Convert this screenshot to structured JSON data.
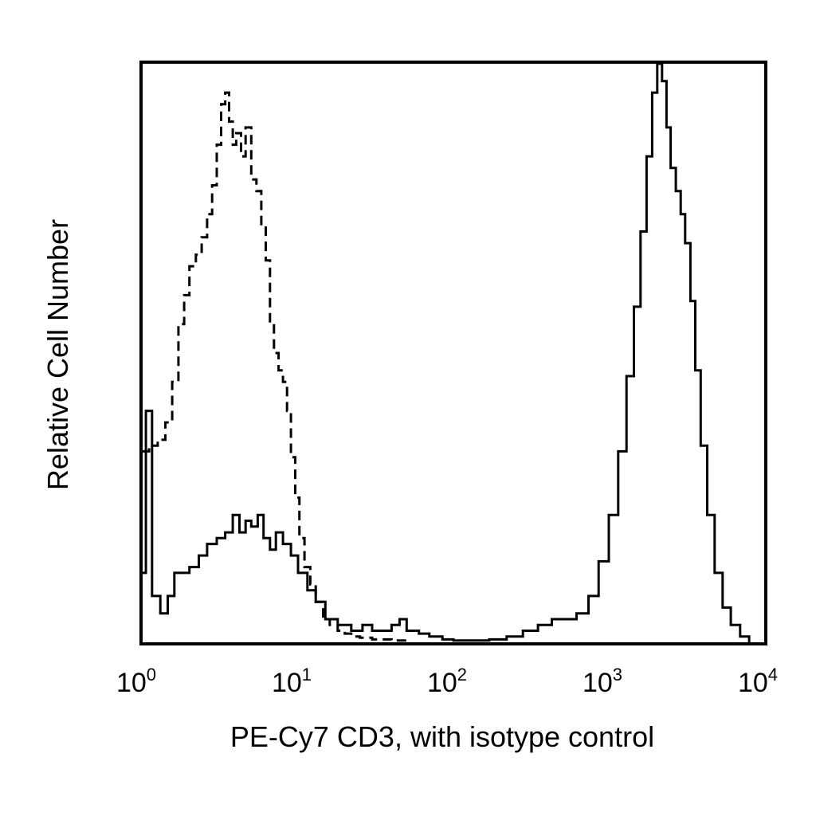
{
  "chart_data": {
    "type": "area",
    "title": "",
    "xlabel": "PE-Cy7 CD3, with isotype control",
    "ylabel": "Relative Cell Number",
    "x_scale": "log",
    "xlim": [
      1,
      10000
    ],
    "ylim": [
      0,
      100
    ],
    "grid": false,
    "legend": "none",
    "x_ticks": [
      {
        "base": "10",
        "exp": "0",
        "value": 1
      },
      {
        "base": "10",
        "exp": "1",
        "value": 10
      },
      {
        "base": "10",
        "exp": "2",
        "value": 100
      },
      {
        "base": "10",
        "exp": "3",
        "value": 1000
      },
      {
        "base": "10",
        "exp": "4",
        "value": 10000
      }
    ],
    "series": [
      {
        "style": "dashed",
        "x": [
          1.0,
          1.1,
          1.25,
          1.4,
          1.55,
          1.7,
          1.85,
          2.0,
          2.2,
          2.4,
          2.6,
          2.8,
          3.0,
          3.2,
          3.4,
          3.6,
          3.8,
          4.0,
          4.3,
          4.6,
          5.0,
          5.4,
          5.8,
          6.2,
          6.6,
          7.0,
          7.5,
          8.0,
          8.5,
          9.0,
          9.6,
          10.2,
          11.0,
          12.0,
          13.0,
          14.5,
          16.0,
          18.0,
          20.0,
          22.0,
          25.0,
          30.0,
          40.0,
          50.0
        ],
        "y": [
          33,
          34,
          35,
          38,
          45,
          55,
          60,
          65,
          67,
          70,
          74,
          79,
          86,
          93,
          95,
          90,
          86,
          88,
          84,
          89,
          80,
          78,
          72,
          66,
          55,
          50,
          47,
          45,
          40,
          32,
          25,
          18,
          13,
          10,
          7,
          4,
          3,
          2,
          1.5,
          1,
          0.8,
          0.5,
          0.3,
          0
        ]
      },
      {
        "style": "solid",
        "x": [
          1.0,
          1.05,
          1.15,
          1.3,
          1.45,
          1.6,
          1.8,
          2.0,
          2.3,
          2.6,
          3.0,
          3.4,
          3.8,
          4.2,
          4.6,
          5.0,
          5.5,
          6.0,
          6.6,
          7.2,
          8.0,
          9.0,
          10.0,
          11.5,
          13.0,
          15.0,
          18.0,
          22.0,
          26.0,
          30.0,
          35.0,
          40.0,
          45.0,
          50.0,
          60.0,
          70.0,
          85.0,
          100.0,
          130.0,
          170.0,
          220.0,
          280.0,
          350.0,
          430.0,
          520.0,
          620.0,
          740.0,
          860.0,
          1000.0,
          1150.0,
          1300.0,
          1450.0,
          1600.0,
          1750.0,
          1900.0,
          2050.0,
          2200.0,
          2350.0,
          2500.0,
          2700.0,
          2900.0,
          3100.0,
          3350.0,
          3600.0,
          3900.0,
          4300.0,
          4800.0,
          5400.0,
          6100.0,
          7000.0,
          8000.0
        ],
        "y": [
          12,
          40,
          8,
          5,
          8,
          12,
          12,
          13,
          15,
          17,
          18,
          19,
          22,
          19,
          21,
          20,
          22,
          18,
          16,
          19,
          17,
          15,
          12,
          9,
          7,
          4,
          3,
          2,
          3,
          2,
          2,
          3,
          4,
          2,
          1.5,
          1,
          0.5,
          0.3,
          0.3,
          0.5,
          1,
          2,
          3,
          4,
          4,
          5,
          8,
          14,
          22,
          33,
          46,
          58,
          71,
          84,
          95,
          100,
          97,
          89,
          82,
          78,
          74,
          69,
          59,
          47,
          34,
          22,
          12,
          6,
          3,
          1,
          0
        ]
      }
    ]
  }
}
